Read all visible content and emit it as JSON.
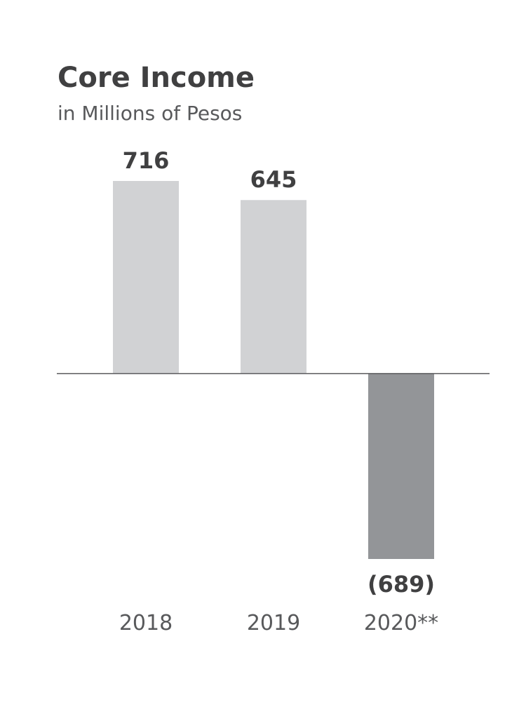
{
  "chart_data": {
    "type": "bar",
    "title": "Core Income",
    "subtitle": "in Millions of Pesos",
    "categories": [
      "2018",
      "2019",
      "2020**"
    ],
    "values": [
      716,
      645,
      -689
    ],
    "value_labels": [
      "716",
      "645",
      "(689)"
    ],
    "colors": [
      "#d1d2d4",
      "#d1d2d4",
      "#939598"
    ]
  }
}
